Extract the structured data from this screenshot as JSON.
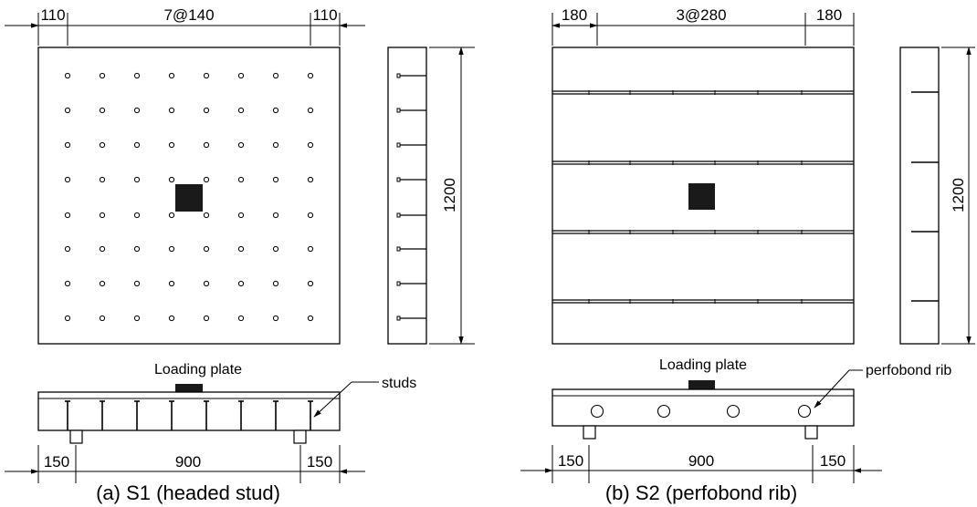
{
  "panel_a": {
    "caption": "(a) S1 (headed stud)",
    "top_dim_left": "110",
    "top_dim_mid": "7@140",
    "top_dim_right": "110",
    "side_dim": "1200",
    "bottom_dim_left": "150",
    "bottom_dim_mid": "900",
    "bottom_dim_right": "150",
    "loading_label": "Loading plate",
    "connector_label": "studs"
  },
  "panel_b": {
    "caption": "(b) S2 (perfobond rib)",
    "top_dim_left": "180",
    "top_dim_mid": "3@280",
    "top_dim_right": "180",
    "side_dim": "1200",
    "bottom_dim_left": "150",
    "bottom_dim_mid": "900",
    "bottom_dim_right": "150",
    "loading_label": "Loading plate",
    "connector_label": "perfobond rib"
  }
}
